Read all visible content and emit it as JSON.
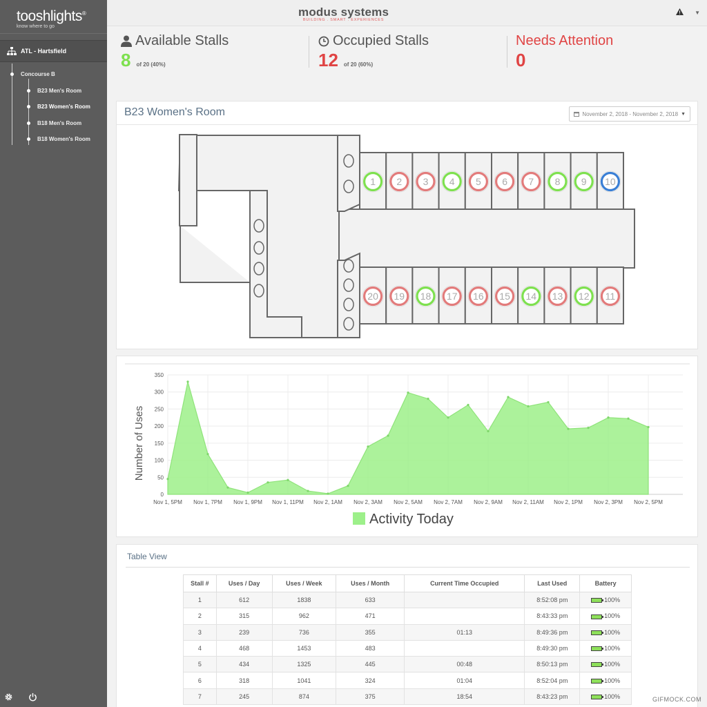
{
  "sidebar": {
    "logo": "tooshlights",
    "tagline": "know where to go",
    "airport": "ATL - Hartsfield",
    "concourse": "Concourse B",
    "rooms": [
      "B23 Men's Room",
      "B23 Women's Room",
      "B18 Men's Room",
      "B18 Women's Room"
    ],
    "active_room_index": 1
  },
  "topbar": {
    "brand": "modus systems",
    "brand_sub": "BUILDING . SMART . EXPERIENCES"
  },
  "stats": {
    "available": {
      "title": "Available Stalls",
      "value": "8",
      "sub": "of 20 (40%)"
    },
    "occupied": {
      "title": "Occupied Stalls",
      "value": "12",
      "sub": "of 20 (60%)"
    },
    "attention": {
      "title": "Needs Attention",
      "value": "0"
    }
  },
  "room": {
    "title": "B23 Women's Room",
    "date_range": "November 2, 2018 - November 2, 2018",
    "stall_status_colors": {
      "available": "#7ee04f",
      "occupied": "#e27b7b",
      "selected": "#3a7fd5"
    },
    "stalls_top": [
      {
        "num": "1",
        "status": "available"
      },
      {
        "num": "2",
        "status": "occupied"
      },
      {
        "num": "3",
        "status": "occupied"
      },
      {
        "num": "4",
        "status": "available"
      },
      {
        "num": "5",
        "status": "occupied"
      },
      {
        "num": "6",
        "status": "occupied"
      },
      {
        "num": "7",
        "status": "occupied"
      },
      {
        "num": "8",
        "status": "available"
      },
      {
        "num": "9",
        "status": "available"
      },
      {
        "num": "10",
        "status": "selected"
      }
    ],
    "stalls_bottom": [
      {
        "num": "20",
        "status": "occupied"
      },
      {
        "num": "19",
        "status": "occupied"
      },
      {
        "num": "18",
        "status": "available"
      },
      {
        "num": "17",
        "status": "occupied"
      },
      {
        "num": "16",
        "status": "occupied"
      },
      {
        "num": "15",
        "status": "occupied"
      },
      {
        "num": "14",
        "status": "available"
      },
      {
        "num": "13",
        "status": "occupied"
      },
      {
        "num": "12",
        "status": "available"
      },
      {
        "num": "11",
        "status": "occupied"
      }
    ]
  },
  "chart_data": {
    "type": "area",
    "ylabel": "Number of Uses",
    "legend": "Activity Today",
    "ylim": [
      0,
      350
    ],
    "yticks": [
      0,
      50,
      100,
      150,
      200,
      250,
      300,
      350
    ],
    "xtick_labels": [
      "Nov 1, 5PM",
      "Nov 1, 7PM",
      "Nov 1, 9PM",
      "Nov 1, 11PM",
      "Nov 2, 1AM",
      "Nov 2, 3AM",
      "Nov 2, 5AM",
      "Nov 2, 7AM",
      "Nov 2, 9AM",
      "Nov 2, 11AM",
      "Nov 2, 1PM",
      "Nov 2, 3PM",
      "Nov 2, 5PM"
    ],
    "color": "#9df08a",
    "values": [
      45,
      330,
      118,
      20,
      5,
      35,
      42,
      10,
      2,
      25,
      140,
      172,
      298,
      280,
      225,
      262,
      185,
      285,
      258,
      270,
      192,
      195,
      225,
      222,
      197
    ]
  },
  "table": {
    "title": "Table View",
    "headers": [
      "Stall #",
      "Uses / Day",
      "Uses / Week",
      "Uses / Month",
      "Current Time Occupied",
      "Last Used",
      "Battery"
    ],
    "rows": [
      [
        "1",
        "612",
        "1838",
        "633",
        "",
        "8:52:08 pm",
        "100%"
      ],
      [
        "2",
        "315",
        "962",
        "471",
        "",
        "8:43:33 pm",
        "100%"
      ],
      [
        "3",
        "239",
        "736",
        "355",
        "01:13",
        "8:49:36 pm",
        "100%"
      ],
      [
        "4",
        "468",
        "1453",
        "483",
        "",
        "8:49:30 pm",
        "100%"
      ],
      [
        "5",
        "434",
        "1325",
        "445",
        "00:48",
        "8:50:13 pm",
        "100%"
      ],
      [
        "6",
        "318",
        "1041",
        "324",
        "01:04",
        "8:52:04 pm",
        "100%"
      ],
      [
        "7",
        "245",
        "874",
        "375",
        "18:54",
        "8:43:23 pm",
        "100%"
      ]
    ]
  },
  "watermark": "GIFMOCK.COM"
}
